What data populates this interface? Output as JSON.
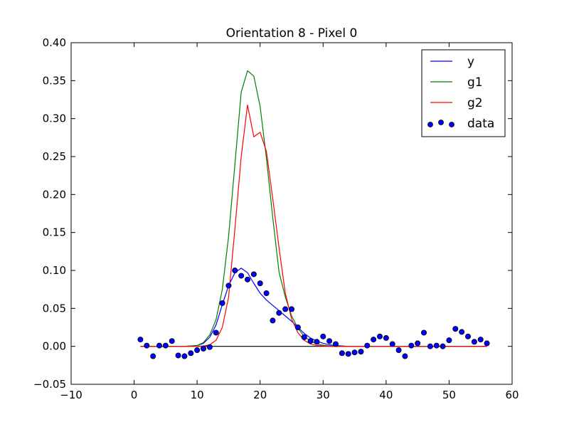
{
  "chart_data": {
    "type": "line",
    "title": "Orientation 8 - Pixel 0",
    "xlabel": "",
    "ylabel": "",
    "xlim": [
      -10,
      60
    ],
    "ylim": [
      -0.05,
      0.4
    ],
    "xticks": [
      "−10",
      "0",
      "10",
      "20",
      "30",
      "40",
      "50",
      "60"
    ],
    "yticks": [
      "−0.05",
      "0.00",
      "0.05",
      "0.10",
      "0.15",
      "0.20",
      "0.25",
      "0.30",
      "0.35",
      "0.40"
    ],
    "grid": false,
    "legend_position": "top-right",
    "colors": {
      "y": "#0000ff",
      "g1": "#008000",
      "g2": "#ff0000",
      "data": "#0000ff",
      "baseline": "#000000"
    },
    "x": [
      1,
      2,
      3,
      4,
      5,
      6,
      7,
      8,
      9,
      10,
      11,
      12,
      13,
      14,
      15,
      16,
      17,
      18,
      19,
      20,
      21,
      22,
      23,
      24,
      25,
      26,
      27,
      28,
      29,
      30,
      31,
      32,
      33,
      34,
      35,
      36,
      37,
      38,
      39,
      40,
      41,
      42,
      43,
      44,
      45,
      46,
      47,
      48,
      49,
      50,
      51,
      52,
      53,
      54,
      55,
      56
    ],
    "series": [
      {
        "name": "y",
        "kind": "line",
        "values": [
          0,
          0,
          0,
          0,
          0,
          0,
          0,
          0,
          0.0005,
          0.001,
          0.004,
          0.012,
          0.028,
          0.055,
          0.08,
          0.097,
          0.103,
          0.097,
          0.083,
          0.07,
          0.061,
          0.054,
          0.047,
          0.04,
          0.033,
          0.025,
          0.017,
          0.011,
          0.007,
          0.004,
          0.002,
          0.001,
          0.0005,
          0,
          0,
          0,
          0,
          0,
          0,
          0,
          0,
          0,
          0,
          0,
          0,
          0,
          0,
          0,
          0,
          0,
          0,
          0,
          0,
          0,
          0,
          0
        ]
      },
      {
        "name": "g1",
        "kind": "line",
        "values": [
          0,
          0,
          0,
          0,
          0,
          0,
          0,
          0,
          0.0005,
          0.001,
          0.005,
          0.015,
          0.035,
          0.075,
          0.145,
          0.24,
          0.335,
          0.363,
          0.356,
          0.316,
          0.248,
          0.17,
          0.098,
          0.065,
          0.04,
          0.024,
          0.013,
          0.007,
          0.003,
          0.0015,
          0.0005,
          0,
          0,
          0,
          0,
          0,
          0,
          0,
          0,
          0,
          0,
          0,
          0,
          0,
          0,
          0,
          0,
          0,
          0,
          0,
          0,
          0,
          0,
          0,
          0,
          0
        ]
      },
      {
        "name": "g2",
        "kind": "line",
        "values": [
          0,
          0,
          0,
          0,
          0,
          0,
          0,
          0,
          0,
          0,
          0.0005,
          0.002,
          0.008,
          0.025,
          0.065,
          0.155,
          0.25,
          0.318,
          0.276,
          0.282,
          0.257,
          0.195,
          0.13,
          0.07,
          0.036,
          0.018,
          0.008,
          0.003,
          0.001,
          0.0005,
          0,
          0,
          0,
          0,
          0,
          0,
          0,
          0,
          0,
          0,
          0,
          0,
          0,
          0,
          0,
          0,
          0,
          0,
          0,
          0,
          0,
          0,
          0,
          0,
          0,
          0
        ]
      },
      {
        "name": "data",
        "kind": "scatter",
        "values": [
          0.009,
          0.001,
          -0.013,
          0.001,
          0.001,
          0.007,
          -0.012,
          -0.013,
          -0.009,
          -0.005,
          -0.003,
          -0.001,
          0.018,
          0.057,
          0.08,
          0.1,
          0.093,
          0.088,
          0.095,
          0.083,
          0.07,
          0.034,
          0.044,
          0.049,
          0.049,
          0.025,
          0.012,
          0.007,
          0.006,
          0.013,
          0.007,
          0.003,
          -0.009,
          -0.01,
          -0.008,
          -0.007,
          0.001,
          0.009,
          0.013,
          0.011,
          0.003,
          -0.005,
          -0.013,
          0.001,
          0.004,
          0.018,
          0.0,
          0.001,
          0.0,
          0.008,
          0.023,
          0.019,
          0.013,
          0.006,
          0.009,
          0.004
        ]
      }
    ],
    "reference_line": {
      "y": 0,
      "x_range": [
        1,
        56
      ]
    },
    "legend": [
      "y",
      "g1",
      "g2",
      "data"
    ]
  }
}
